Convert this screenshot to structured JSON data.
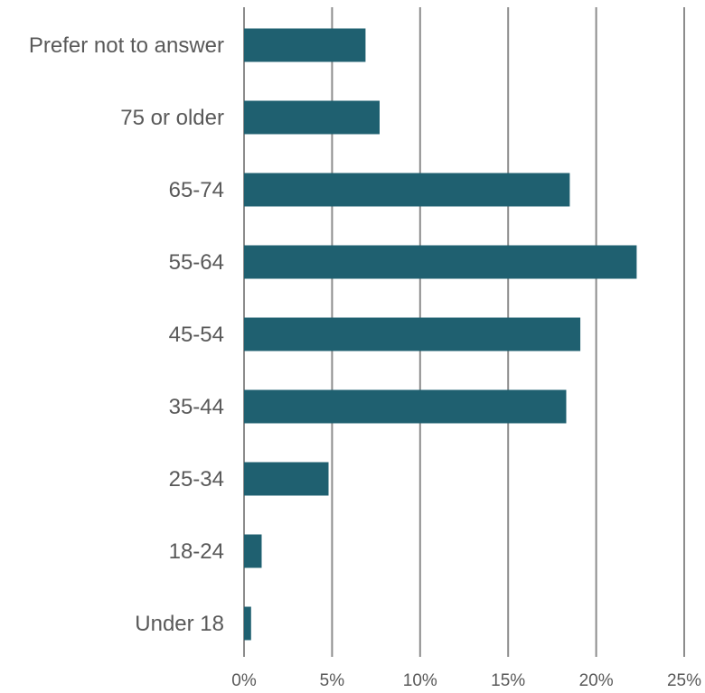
{
  "chart_data": {
    "type": "bar",
    "orientation": "horizontal",
    "categories": [
      "Prefer not to answer",
      "75 or older",
      "65-74",
      "55-64",
      "45-54",
      "35-44",
      "25-34",
      "18-24",
      "Under 18"
    ],
    "values": [
      6.9,
      7.7,
      18.5,
      22.3,
      19.1,
      18.3,
      4.8,
      1.0,
      0.4
    ],
    "value_unit": "%",
    "xlim": [
      0,
      25
    ],
    "x_ticks": [
      0,
      5,
      10,
      15,
      20,
      25
    ],
    "x_tick_labels": [
      "0%",
      "5%",
      "10%",
      "15%",
      "20%",
      "25%"
    ],
    "title": "",
    "xlabel": "",
    "ylabel": "",
    "grid": "vertical",
    "legend": "none",
    "colors": {
      "bar": "#1F6070",
      "grid": "#8C8C8C",
      "text": "#595959"
    }
  }
}
